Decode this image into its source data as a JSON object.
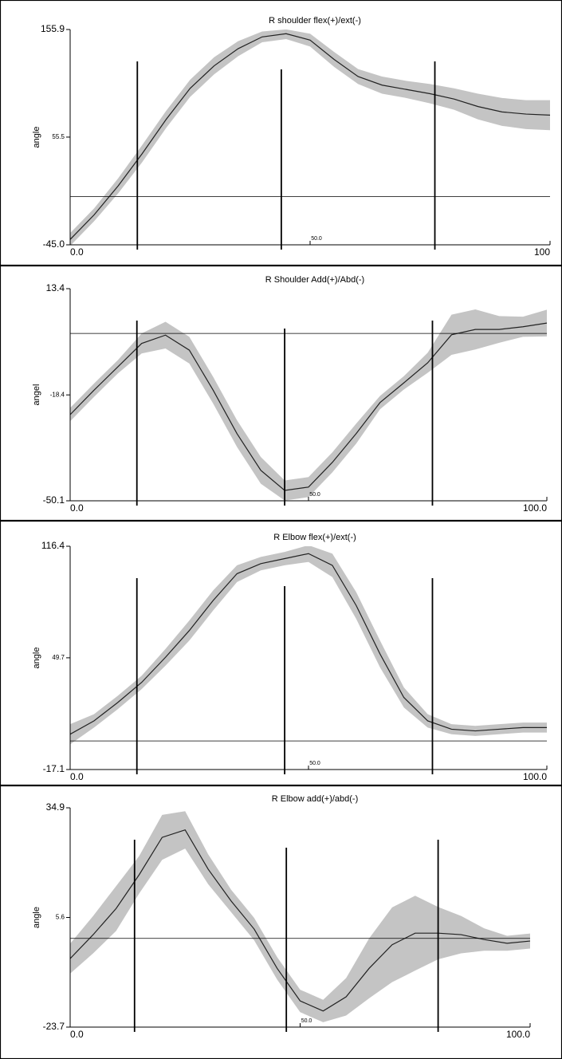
{
  "chart_data": [
    {
      "type": "line",
      "title": "R shoulder flex(+)/ext(-)",
      "y_label": "angle",
      "x": [
        0,
        5,
        10,
        15,
        20,
        25,
        30,
        35,
        40,
        45,
        50,
        55,
        60,
        65,
        70,
        75,
        80,
        85,
        90,
        95,
        100
      ],
      "series": [
        {
          "color": "#222222",
          "band_color": "#c4c4c4",
          "values": [
            -40,
            -17,
            10,
            40,
            72,
            101,
            122,
            138,
            149,
            152,
            146,
            128,
            112,
            104,
            100,
            96,
            91,
            84,
            79,
            77,
            76
          ],
          "lower": [
            -46,
            -23,
            3,
            32,
            64,
            93,
            114,
            131,
            144,
            147,
            140,
            121,
            105,
            96,
            92,
            87,
            81,
            72,
            66,
            63,
            62
          ],
          "upper": [
            -34,
            -11,
            17,
            48,
            80,
            109,
            130,
            145,
            154,
            156,
            152,
            135,
            119,
            112,
            108,
            105,
            101,
            96,
            92,
            90,
            90
          ]
        }
      ],
      "events": [
        14,
        44,
        76
      ],
      "reference_line": 0,
      "ylim": [
        -45,
        155.9
      ],
      "yticks": [
        {
          "value": -45,
          "label": "-45.0"
        },
        55.5,
        155.9
      ],
      "xlim": [
        0,
        100
      ],
      "xticks": [
        {
          "value": 0,
          "label": "0.0"
        },
        {
          "value": 50,
          "label": "50.0"
        },
        {
          "value": 100,
          "label": "100"
        }
      ]
    },
    {
      "type": "line",
      "title": "R Shoulder Add(+)/Abd(-)",
      "y_label": "angel",
      "x": [
        0,
        5,
        10,
        15,
        20,
        25,
        30,
        35,
        40,
        45,
        50,
        55,
        60,
        65,
        70,
        75,
        80,
        85,
        90,
        95,
        100
      ],
      "series": [
        {
          "color": "#222222",
          "band_color": "#c4c4c4",
          "values": [
            -24.3,
            -17,
            -10,
            -3,
            -0.5,
            -5,
            -17,
            -30,
            -41,
            -47,
            -46,
            -38.6,
            -30,
            -20.7,
            -14.8,
            -8.8,
            -0.4,
            1.2,
            1.2,
            2,
            3.1
          ],
          "lower": [
            -26.3,
            -19,
            -12,
            -6,
            -4.5,
            -9,
            -21,
            -34,
            -45,
            -50,
            -49,
            -41.6,
            -33,
            -22.7,
            -16.8,
            -11.8,
            -6.4,
            -4.8,
            -2.8,
            -1,
            -0.9
          ],
          "upper": [
            -22.3,
            -15,
            -8,
            0,
            3.5,
            -1,
            -13,
            -26,
            -37,
            -44,
            -43,
            -35.6,
            -27,
            -18.7,
            -12.8,
            -5.8,
            5.6,
            7.2,
            5.2,
            5,
            7.1
          ]
        }
      ],
      "events": [
        14,
        45,
        76
      ],
      "reference_line": 0,
      "ylim": [
        -50.1,
        13.4
      ],
      "yticks": [
        -50.1,
        -18.4,
        13.4
      ],
      "xlim": [
        0,
        100
      ],
      "xticks": [
        {
          "value": 0,
          "label": "0.0"
        },
        {
          "value": 50,
          "label": "50.0"
        },
        {
          "value": 100,
          "label": "100.0"
        }
      ]
    },
    {
      "type": "line",
      "title": "R Elbow flex(+)/ext(-)",
      "y_label": "angle",
      "x": [
        0,
        5,
        10,
        15,
        20,
        25,
        30,
        35,
        40,
        45,
        50,
        55,
        60,
        65,
        70,
        75,
        80,
        85,
        90,
        95,
        100
      ],
      "series": [
        {
          "color": "#222222",
          "band_color": "#c4c4c4",
          "values": [
            4,
            12,
            23,
            35,
            50,
            66,
            84,
            100,
            106,
            109,
            112,
            105,
            81,
            52,
            26,
            12,
            7,
            6,
            7,
            8,
            8
          ],
          "lower": [
            -2,
            8,
            19,
            31,
            45,
            60,
            78,
            95,
            102,
            105,
            107,
            98,
            73,
            44,
            20,
            8,
            4,
            3,
            4,
            5,
            5
          ],
          "upper": [
            10,
            16,
            27,
            39,
            55,
            72,
            90,
            105,
            110,
            113,
            117,
            112,
            89,
            60,
            32,
            16,
            10,
            9,
            10,
            11,
            11
          ]
        }
      ],
      "events": [
        14,
        45,
        76
      ],
      "reference_line": 0,
      "ylim": [
        -17.1,
        116.4
      ],
      "yticks": [
        -17.1,
        49.7,
        116.4
      ],
      "xlim": [
        0,
        100
      ],
      "xticks": [
        {
          "value": 0,
          "label": "0.0"
        },
        {
          "value": 50,
          "label": "50.0"
        },
        {
          "value": 100,
          "label": "100.0"
        }
      ]
    },
    {
      "type": "line",
      "title": "R Elbow add(+)/abd(-)",
      "y_label": "angle",
      "x": [
        0,
        5,
        10,
        15,
        20,
        25,
        30,
        35,
        40,
        45,
        50,
        55,
        60,
        65,
        70,
        75,
        80,
        85,
        90,
        95,
        100
      ],
      "series": [
        {
          "color": "#222222",
          "band_color": "#c4c4c4",
          "values": [
            -5.4,
            1,
            8,
            17,
            27,
            29,
            18.5,
            10,
            2.5,
            -8,
            -16.7,
            -19.4,
            -15.6,
            -8,
            -1.7,
            1.4,
            1.4,
            1,
            -0.3,
            -1.3,
            -0.7
          ],
          "lower": [
            -9.4,
            -4,
            2,
            12,
            21,
            24,
            14.5,
            7,
            -0.5,
            -11,
            -19.7,
            -22.4,
            -20.6,
            -16,
            -11.7,
            -8.6,
            -5.6,
            -4,
            -3.3,
            -3.3,
            -2.7
          ],
          "upper": [
            -1.4,
            6,
            14,
            22,
            33,
            34,
            22.5,
            13,
            5.5,
            -5,
            -13.7,
            -16.4,
            -10.6,
            0,
            8.3,
            11.4,
            8.4,
            6,
            2.7,
            0.7,
            1.3
          ]
        }
      ],
      "events": [
        14,
        47,
        80
      ],
      "reference_line": 0,
      "ylim": [
        -23.7,
        34.9
      ],
      "yticks": [
        -23.7,
        5.6,
        34.9
      ],
      "xlim": [
        0,
        100
      ],
      "xticks": [
        {
          "value": 0,
          "label": "0.0"
        },
        {
          "value": 50,
          "label": "50.0"
        },
        {
          "value": 100,
          "label": "100.0"
        }
      ]
    }
  ]
}
